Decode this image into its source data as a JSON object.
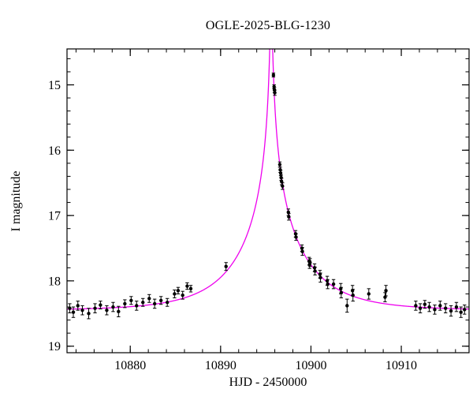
{
  "chart_data": {
    "type": "scatter",
    "title": "OGLE-2025-BLG-1230",
    "xlabel": "HJD - 2450000",
    "ylabel": "I magnitude",
    "xlim": [
      10873,
      10917.5
    ],
    "ylim": [
      14.45,
      19.1
    ],
    "y_axis_inverted": true,
    "x_major_ticks": [
      10880,
      10890,
      10900,
      10910
    ],
    "x_minor_step": 2,
    "y_major_ticks": [
      15,
      16,
      17,
      18,
      19
    ],
    "y_minor_step": 0.2,
    "grid": false,
    "legend": "none",
    "point_color": "#000000",
    "curve_color": "#ee00ee",
    "model": {
      "type": "paczynski_microlensing",
      "t0": 10895.6,
      "tE": 7.4,
      "u0": 0.012,
      "baseline_mag": 18.45
    },
    "points": [
      [
        10873.3,
        18.42,
        0.07
      ],
      [
        10873.7,
        18.48,
        0.08
      ],
      [
        10874.2,
        18.38,
        0.07
      ],
      [
        10874.7,
        18.45,
        0.07
      ],
      [
        10875.4,
        18.5,
        0.08
      ],
      [
        10876.1,
        18.42,
        0.07
      ],
      [
        10876.7,
        18.37,
        0.06
      ],
      [
        10877.4,
        18.45,
        0.07
      ],
      [
        10878.1,
        18.4,
        0.07
      ],
      [
        10878.7,
        18.47,
        0.08
      ],
      [
        10879.4,
        18.35,
        0.06
      ],
      [
        10880.1,
        18.3,
        0.06
      ],
      [
        10880.7,
        18.38,
        0.07
      ],
      [
        10881.4,
        18.33,
        0.06
      ],
      [
        10882.1,
        18.27,
        0.06
      ],
      [
        10882.7,
        18.35,
        0.07
      ],
      [
        10883.4,
        18.3,
        0.06
      ],
      [
        10884.1,
        18.33,
        0.06
      ],
      [
        10884.9,
        18.2,
        0.06
      ],
      [
        10885.3,
        18.15,
        0.05
      ],
      [
        10885.8,
        18.22,
        0.06
      ],
      [
        10886.3,
        18.08,
        0.05
      ],
      [
        10886.7,
        18.12,
        0.05
      ],
      [
        10890.6,
        17.78,
        0.06
      ],
      [
        10895.85,
        14.85,
        0.03
      ],
      [
        10895.92,
        15.03,
        0.03
      ],
      [
        10895.96,
        15.08,
        0.04
      ],
      [
        10896.0,
        15.12,
        0.04
      ],
      [
        10896.55,
        16.22,
        0.04
      ],
      [
        10896.6,
        16.3,
        0.04
      ],
      [
        10896.65,
        16.35,
        0.04
      ],
      [
        10896.7,
        16.42,
        0.04
      ],
      [
        10896.75,
        16.48,
        0.05
      ],
      [
        10896.85,
        16.55,
        0.05
      ],
      [
        10897.5,
        16.95,
        0.05
      ],
      [
        10897.55,
        17.02,
        0.05
      ],
      [
        10898.3,
        17.28,
        0.05
      ],
      [
        10898.35,
        17.33,
        0.05
      ],
      [
        10899.0,
        17.5,
        0.05
      ],
      [
        10899.05,
        17.55,
        0.06
      ],
      [
        10899.8,
        17.7,
        0.06
      ],
      [
        10899.85,
        17.75,
        0.06
      ],
      [
        10899.9,
        17.72,
        0.06
      ],
      [
        10900.4,
        17.8,
        0.06
      ],
      [
        10900.45,
        17.85,
        0.06
      ],
      [
        10901.0,
        17.9,
        0.06
      ],
      [
        10901.05,
        17.95,
        0.07
      ],
      [
        10901.8,
        18.0,
        0.07
      ],
      [
        10901.85,
        18.05,
        0.07
      ],
      [
        10902.5,
        18.05,
        0.07
      ],
      [
        10903.3,
        18.12,
        0.08
      ],
      [
        10903.35,
        18.18,
        0.08
      ],
      [
        10904.0,
        18.38,
        0.1
      ],
      [
        10904.6,
        18.15,
        0.08
      ],
      [
        10904.65,
        18.22,
        0.09
      ],
      [
        10906.4,
        18.2,
        0.08
      ],
      [
        10908.2,
        18.25,
        0.07
      ],
      [
        10908.3,
        18.15,
        0.08
      ],
      [
        10911.6,
        18.38,
        0.07
      ],
      [
        10912.1,
        18.42,
        0.07
      ],
      [
        10912.6,
        18.36,
        0.06
      ],
      [
        10913.1,
        18.4,
        0.07
      ],
      [
        10913.7,
        18.44,
        0.07
      ],
      [
        10914.3,
        18.38,
        0.07
      ],
      [
        10914.9,
        18.42,
        0.07
      ],
      [
        10915.5,
        18.46,
        0.08
      ],
      [
        10916.1,
        18.4,
        0.07
      ],
      [
        10916.6,
        18.48,
        0.08
      ],
      [
        10917.0,
        18.44,
        0.07
      ]
    ]
  }
}
